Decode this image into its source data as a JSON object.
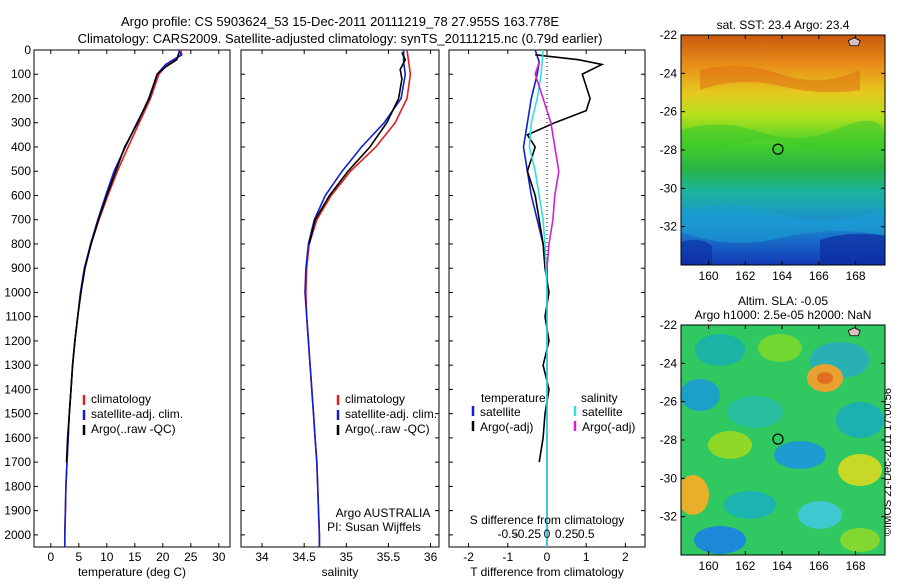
{
  "header": {
    "line1": "Argo profile: CS 5903624_53 15-Dec-2011 20111219_78 27.955S 163.778E",
    "line2": "Climatology: CARS2009. Satellite-adjusted climatology: synTS_20111215.nc (0.79d earlier)"
  },
  "colors": {
    "climatology": "#e02020",
    "satellite": "#1020d0",
    "argo": "#000000",
    "sat_salinity": "#30e0e0",
    "argo_salinity": "#d020d0"
  },
  "watermark": "©IMOS 21-Dec-2011 17:00:56",
  "chart_data": [
    {
      "type": "line",
      "xlabel": "temperature (deg C)",
      "ylabel": "",
      "xlim": [
        -3,
        32
      ],
      "ylim": [
        2050,
        0
      ],
      "x_ticks": [
        0,
        5,
        10,
        15,
        20,
        25,
        30
      ],
      "x_tick_labels": [
        "0",
        "5",
        "10",
        "15",
        "20",
        "25",
        "30"
      ],
      "y_ticks": [
        0,
        100,
        200,
        300,
        400,
        500,
        600,
        700,
        800,
        900,
        1000,
        1100,
        1200,
        1300,
        1400,
        1500,
        1600,
        1700,
        1800,
        1900,
        2000
      ],
      "y_tick_labels": [
        "0",
        "100",
        "200",
        "300",
        "400",
        "500",
        "600",
        "700",
        "800",
        "900",
        "1000",
        "1100",
        "1200",
        "1300",
        "1400",
        "1500",
        "1600",
        "1700",
        "1800",
        "1900",
        "2000"
      ],
      "legend": [
        "climatology",
        "satellite-adj. clim.",
        "Argo(..raw -QC)"
      ],
      "series": [
        {
          "name": "climatology",
          "color": "#e02020",
          "points": [
            [
              23.2,
              0
            ],
            [
              23.4,
              20
            ],
            [
              20.8,
              60
            ],
            [
              19.3,
              100
            ],
            [
              17.8,
              200
            ],
            [
              15.8,
              300
            ],
            [
              13.8,
              400
            ],
            [
              11.9,
              500
            ],
            [
              10.2,
              600
            ],
            [
              8.6,
              700
            ],
            [
              7.2,
              800
            ],
            [
              6.0,
              900
            ],
            [
              5.3,
              1000
            ],
            [
              4.8,
              1100
            ],
            [
              4.3,
              1200
            ],
            [
              3.9,
              1300
            ],
            [
              3.6,
              1400
            ],
            [
              3.3,
              1500
            ],
            [
              3.1,
              1600
            ],
            [
              2.9,
              1700
            ],
            [
              2.7,
              1800
            ],
            [
              2.6,
              1900
            ],
            [
              2.5,
              2000
            ],
            [
              2.5,
              2050
            ]
          ]
        },
        {
          "name": "satellite-adj. clim.",
          "color": "#1020d0",
          "points": [
            [
              22.8,
              0
            ],
            [
              23.3,
              20
            ],
            [
              20.5,
              60
            ],
            [
              19.0,
              100
            ],
            [
              17.6,
              200
            ],
            [
              15.4,
              300
            ],
            [
              13.3,
              400
            ],
            [
              11.3,
              500
            ],
            [
              9.8,
              600
            ],
            [
              8.4,
              700
            ],
            [
              7.1,
              800
            ],
            [
              6.0,
              900
            ],
            [
              5.3,
              1000
            ],
            [
              4.8,
              1100
            ],
            [
              4.3,
              1200
            ],
            [
              3.9,
              1300
            ],
            [
              3.6,
              1400
            ],
            [
              3.3,
              1500
            ],
            [
              3.1,
              1600
            ],
            [
              2.9,
              1700
            ],
            [
              2.7,
              1800
            ],
            [
              2.6,
              1900
            ],
            [
              2.5,
              2000
            ],
            [
              2.5,
              2050
            ]
          ]
        },
        {
          "name": "Argo(..raw -QC)",
          "color": "#000000",
          "points": [
            [
              22.9,
              10
            ],
            [
              22.5,
              40
            ],
            [
              20.5,
              70
            ],
            [
              19.0,
              100
            ],
            [
              17.5,
              200
            ],
            [
              15.5,
              300
            ],
            [
              13.2,
              400
            ],
            [
              11.6,
              500
            ],
            [
              10.0,
              600
            ],
            [
              8.5,
              700
            ],
            [
              7.2,
              800
            ],
            [
              6.1,
              900
            ],
            [
              5.4,
              1000
            ],
            [
              4.8,
              1100
            ],
            [
              4.3,
              1200
            ],
            [
              3.9,
              1300
            ],
            [
              3.6,
              1400
            ],
            [
              3.3,
              1500
            ],
            [
              3.0,
              1600
            ],
            [
              2.8,
              1700
            ]
          ]
        }
      ]
    },
    {
      "type": "line",
      "xlabel": "salinity",
      "ylabel": "",
      "xlim": [
        33.75,
        36.1
      ],
      "ylim": [
        2050,
        0
      ],
      "x_ticks": [
        34,
        34.5,
        35,
        35.5,
        36
      ],
      "x_tick_labels": [
        "34",
        "34.5",
        "35",
        "35.5",
        "36"
      ],
      "legend": [
        "climatology",
        "satellite-adj. clim.",
        "Argo(..raw -QC)"
      ],
      "annotation": [
        "Argo AUSTRALIA",
        "PI: Susan Wijffels"
      ],
      "series": [
        {
          "name": "climatology",
          "color": "#e02020",
          "points": [
            [
              35.72,
              0
            ],
            [
              35.74,
              50
            ],
            [
              35.76,
              100
            ],
            [
              35.72,
              200
            ],
            [
              35.58,
              300
            ],
            [
              35.35,
              400
            ],
            [
              35.05,
              500
            ],
            [
              34.82,
              600
            ],
            [
              34.65,
              700
            ],
            [
              34.56,
              800
            ],
            [
              34.53,
              900
            ],
            [
              34.52,
              1000
            ],
            [
              34.53,
              1100
            ],
            [
              34.55,
              1200
            ],
            [
              34.57,
              1300
            ],
            [
              34.59,
              1400
            ],
            [
              34.61,
              1500
            ],
            [
              34.63,
              1600
            ],
            [
              34.65,
              1700
            ],
            [
              34.66,
              1800
            ],
            [
              34.67,
              1900
            ],
            [
              34.68,
              2000
            ],
            [
              34.68,
              2050
            ]
          ]
        },
        {
          "name": "satellite-adj. clim.",
          "color": "#1020d0",
          "points": [
            [
              35.68,
              0
            ],
            [
              35.68,
              50
            ],
            [
              35.7,
              100
            ],
            [
              35.65,
              200
            ],
            [
              35.45,
              300
            ],
            [
              35.18,
              400
            ],
            [
              34.95,
              500
            ],
            [
              34.75,
              600
            ],
            [
              34.62,
              700
            ],
            [
              34.55,
              800
            ],
            [
              34.52,
              900
            ],
            [
              34.51,
              1000
            ],
            [
              34.53,
              1100
            ],
            [
              34.55,
              1200
            ],
            [
              34.57,
              1300
            ],
            [
              34.59,
              1400
            ],
            [
              34.61,
              1500
            ],
            [
              34.63,
              1600
            ],
            [
              34.65,
              1700
            ],
            [
              34.66,
              1800
            ],
            [
              34.67,
              1900
            ],
            [
              34.68,
              2000
            ],
            [
              34.68,
              2050
            ]
          ]
        },
        {
          "name": "Argo(..raw -QC)",
          "color": "#000000",
          "points": [
            [
              35.66,
              10
            ],
            [
              35.7,
              40
            ],
            [
              35.64,
              80
            ],
            [
              35.66,
              120
            ],
            [
              35.62,
              200
            ],
            [
              35.48,
              300
            ],
            [
              35.28,
              400
            ],
            [
              35.02,
              500
            ],
            [
              34.8,
              600
            ],
            [
              34.63,
              700
            ],
            [
              34.56,
              800
            ]
          ]
        }
      ]
    },
    {
      "type": "line",
      "xlabel": "T difference from climatology",
      "x2label": "S difference from climatology",
      "xlim": [
        -2.5,
        2.5
      ],
      "ylim": [
        2050,
        0
      ],
      "x_ticks": [
        -2,
        -1,
        0,
        1,
        2
      ],
      "x_tick_labels": [
        "-2",
        "-1",
        "0",
        "1",
        "2"
      ],
      "x2_ticks": [
        -1,
        -0.5,
        0,
        0.5,
        1
      ],
      "x2_tick_labels": [
        "-0.5",
        "-0.25",
        "0",
        "0.25",
        "0.5"
      ],
      "legend_temperature": [
        "temperature",
        "satellite",
        "Argo(-adj)"
      ],
      "legend_salinity": [
        "salinity",
        "satellite",
        "Argo(-adj)"
      ],
      "series": [
        {
          "name": "T satellite",
          "color": "#1020d0",
          "points": [
            [
              -0.3,
              0
            ],
            [
              -0.2,
              50
            ],
            [
              -0.25,
              100
            ],
            [
              -0.4,
              200
            ],
            [
              -0.5,
              300
            ],
            [
              -0.6,
              400
            ],
            [
              -0.5,
              500
            ],
            [
              -0.4,
              600
            ],
            [
              -0.25,
              700
            ],
            [
              -0.1,
              800
            ],
            [
              0,
              900
            ],
            [
              0,
              1000
            ],
            [
              0,
              1500
            ],
            [
              0,
              2050
            ]
          ]
        },
        {
          "name": "T Argo(-adj)",
          "color": "#000000",
          "points": [
            [
              -0.3,
              20
            ],
            [
              0.8,
              40
            ],
            [
              1.4,
              60
            ],
            [
              0.9,
              100
            ],
            [
              1.1,
              200
            ],
            [
              1.0,
              250
            ],
            [
              0.2,
              300
            ],
            [
              -0.5,
              350
            ],
            [
              -0.3,
              400
            ],
            [
              -0.4,
              450
            ],
            [
              -0.5,
              500
            ],
            [
              -0.3,
              600
            ],
            [
              -0.2,
              700
            ],
            [
              -0.1,
              800
            ],
            [
              -0.05,
              900
            ],
            [
              0.05,
              1000
            ],
            [
              -0.05,
              1100
            ],
            [
              0.05,
              1200
            ],
            [
              -0.1,
              1300
            ],
            [
              0.05,
              1400
            ],
            [
              -0.05,
              1500
            ],
            [
              -0.1,
              1600
            ],
            [
              -0.2,
              1700
            ]
          ]
        },
        {
          "name": "S satellite",
          "color": "#30e0e0",
          "points": [
            [
              -0.1,
              0
            ],
            [
              -0.15,
              100
            ],
            [
              -0.25,
              200
            ],
            [
              -0.4,
              300
            ],
            [
              -0.45,
              400
            ],
            [
              -0.3,
              500
            ],
            [
              -0.2,
              600
            ],
            [
              -0.1,
              700
            ],
            [
              -0.05,
              800
            ],
            [
              0,
              1000
            ],
            [
              0,
              2050
            ]
          ]
        },
        {
          "name": "S Argo(-adj)",
          "color": "#d020d0",
          "points": [
            [
              -0.2,
              50
            ],
            [
              -0.3,
              100
            ],
            [
              -0.1,
              200
            ],
            [
              0.1,
              300
            ],
            [
              0.2,
              400
            ],
            [
              0.3,
              500
            ],
            [
              0.2,
              600
            ],
            [
              0.15,
              700
            ],
            [
              0.05,
              800
            ],
            [
              0,
              900
            ]
          ]
        }
      ]
    },
    {
      "type": "heatmap",
      "title": "sat. SST: 23.4  Argo: 23.4",
      "xlim": [
        158.5,
        169.6
      ],
      "ylim": [
        -34.0,
        -22.0
      ],
      "x_ticks": [
        160,
        162,
        164,
        166,
        168
      ],
      "x_tick_labels": [
        "160",
        "162",
        "164",
        "166",
        "168"
      ],
      "y_ticks": [
        -22,
        -24,
        -26,
        -28,
        -30,
        -32
      ],
      "y_tick_labels": [
        "-22",
        "-24",
        "-26",
        "-28",
        "-30",
        "-32"
      ],
      "marker": [
        163.778,
        -27.955
      ]
    },
    {
      "type": "heatmap",
      "title": "Altim. SLA: -0.05",
      "subtitle": "Argo h1000: 2.5e-05 h2000: NaN",
      "xlim": [
        158.5,
        169.6
      ],
      "ylim": [
        -34.0,
        -22.0
      ],
      "x_ticks": [
        160,
        162,
        164,
        166,
        168
      ],
      "x_tick_labels": [
        "160",
        "162",
        "164",
        "166",
        "168"
      ],
      "y_ticks": [
        -22,
        -24,
        -26,
        -28,
        -30,
        -32
      ],
      "y_tick_labels": [
        "-22",
        "-24",
        "-26",
        "-28",
        "-30",
        "-32"
      ],
      "marker": [
        163.778,
        -27.955
      ]
    }
  ]
}
